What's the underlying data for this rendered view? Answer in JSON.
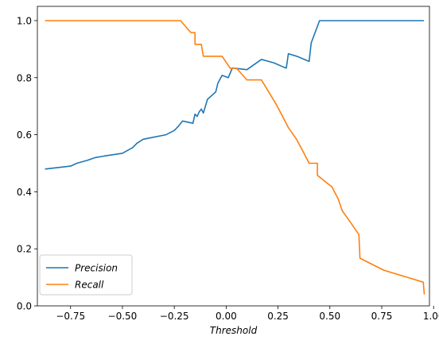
{
  "chart_data": {
    "type": "line",
    "title": "",
    "xlabel": "Threshold",
    "ylabel": "",
    "xlim": [
      -0.91,
      0.98
    ],
    "ylim": [
      0.0,
      1.05
    ],
    "grid": false,
    "legend_position": "lower-left",
    "x_ticks": [
      -0.75,
      -0.5,
      -0.25,
      0.0,
      0.25,
      0.5,
      0.75,
      1.0
    ],
    "x_tick_labels": [
      "−0.75",
      "−0.50",
      "−0.25",
      "0.00",
      "0.25",
      "0.50",
      "0.75",
      "1.00"
    ],
    "y_ticks": [
      0.0,
      0.2,
      0.4,
      0.6,
      0.8,
      1.0
    ],
    "y_tick_labels": [
      "0.0",
      "0.2",
      "0.4",
      "0.6",
      "0.8",
      "1.0"
    ],
    "series": [
      {
        "name": "Precision",
        "color": "#1f77b4",
        "points": [
          [
            -0.87,
            0.48
          ],
          [
            -0.75,
            0.49
          ],
          [
            -0.72,
            0.5
          ],
          [
            -0.67,
            0.51
          ],
          [
            -0.63,
            0.52
          ],
          [
            -0.58,
            0.526
          ],
          [
            -0.5,
            0.535
          ],
          [
            -0.45,
            0.555
          ],
          [
            -0.43,
            0.57
          ],
          [
            -0.4,
            0.584
          ],
          [
            -0.36,
            0.59
          ],
          [
            -0.29,
            0.6
          ],
          [
            -0.25,
            0.615
          ],
          [
            -0.23,
            0.63
          ],
          [
            -0.21,
            0.648
          ],
          [
            -0.16,
            0.64
          ],
          [
            -0.15,
            0.672
          ],
          [
            -0.14,
            0.664
          ],
          [
            -0.13,
            0.68
          ],
          [
            -0.12,
            0.69
          ],
          [
            -0.11,
            0.676
          ],
          [
            -0.09,
            0.724
          ],
          [
            -0.05,
            0.75
          ],
          [
            -0.04,
            0.78
          ],
          [
            -0.02,
            0.808
          ],
          [
            0.01,
            0.8
          ],
          [
            0.03,
            0.834
          ],
          [
            0.1,
            0.828
          ],
          [
            0.17,
            0.864
          ],
          [
            0.23,
            0.852
          ],
          [
            0.28,
            0.836
          ],
          [
            0.29,
            0.834
          ],
          [
            0.3,
            0.884
          ],
          [
            0.34,
            0.875
          ],
          [
            0.4,
            0.857
          ],
          [
            0.41,
            0.922
          ],
          [
            0.45,
            1.0
          ],
          [
            0.95,
            1.0
          ]
        ]
      },
      {
        "name": "Recall",
        "color": "#ff7f0e",
        "points": [
          [
            -0.87,
            1.0
          ],
          [
            -0.22,
            1.0
          ],
          [
            -0.17,
            0.958
          ],
          [
            -0.15,
            0.958
          ],
          [
            -0.15,
            0.917
          ],
          [
            -0.12,
            0.917
          ],
          [
            -0.11,
            0.875
          ],
          [
            -0.02,
            0.875
          ],
          [
            0.02,
            0.833
          ],
          [
            0.05,
            0.833
          ],
          [
            0.1,
            0.792
          ],
          [
            0.17,
            0.792
          ],
          [
            0.24,
            0.708
          ],
          [
            0.27,
            0.667
          ],
          [
            0.3,
            0.625
          ],
          [
            0.34,
            0.583
          ],
          [
            0.37,
            0.542
          ],
          [
            0.4,
            0.5
          ],
          [
            0.44,
            0.5
          ],
          [
            0.44,
            0.458
          ],
          [
            0.47,
            0.44
          ],
          [
            0.51,
            0.417
          ],
          [
            0.54,
            0.375
          ],
          [
            0.56,
            0.333
          ],
          [
            0.6,
            0.292
          ],
          [
            0.64,
            0.25
          ],
          [
            0.645,
            0.167
          ],
          [
            0.76,
            0.125
          ],
          [
            0.95,
            0.083
          ],
          [
            0.955,
            0.042
          ]
        ]
      }
    ]
  }
}
